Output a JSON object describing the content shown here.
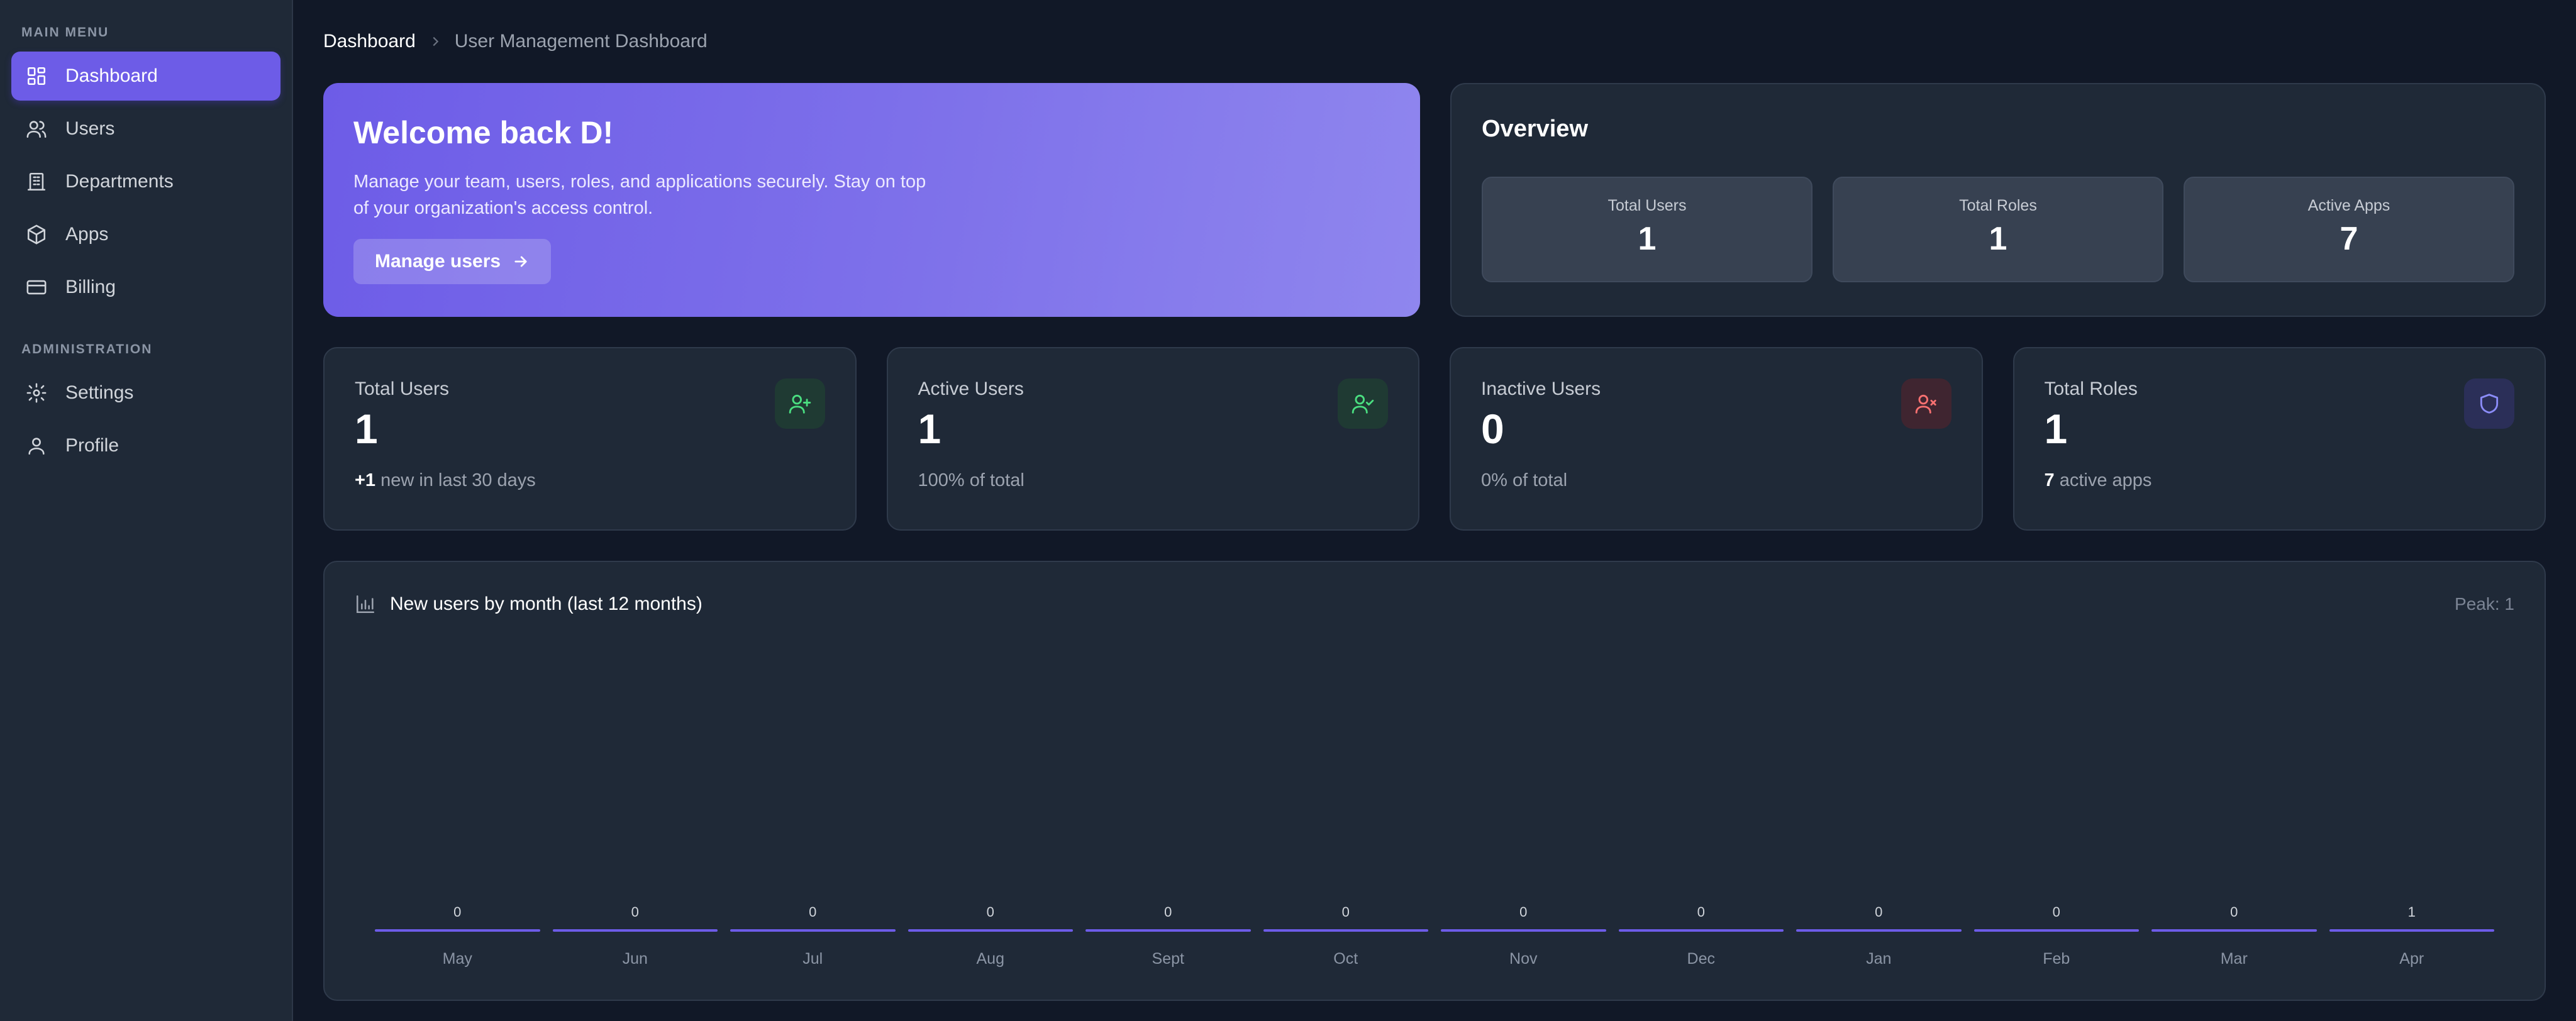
{
  "sidebar": {
    "main_menu_title": "MAIN MENU",
    "main_items": [
      {
        "label": "Dashboard",
        "icon": "grid-icon",
        "active": true
      },
      {
        "label": "Users",
        "icon": "users-icon"
      },
      {
        "label": "Departments",
        "icon": "building-icon"
      },
      {
        "label": "Apps",
        "icon": "box-icon"
      },
      {
        "label": "Billing",
        "icon": "card-icon"
      }
    ],
    "admin_title": "ADMINISTRATION",
    "admin_items": [
      {
        "label": "Settings",
        "icon": "gear-icon"
      },
      {
        "label": "Profile",
        "icon": "user-icon"
      }
    ]
  },
  "breadcrumb": {
    "root": "Dashboard",
    "current": "User Management Dashboard"
  },
  "welcome": {
    "title": "Welcome back D!",
    "text": "Manage your team, users, roles, and applications securely. Stay on top of your organization's access control.",
    "button": "Manage users"
  },
  "overview": {
    "title": "Overview",
    "cards": [
      {
        "label": "Total Users",
        "value": "1"
      },
      {
        "label": "Total Roles",
        "value": "1"
      },
      {
        "label": "Active Apps",
        "value": "7"
      }
    ]
  },
  "stats": [
    {
      "label": "Total Users",
      "value": "1",
      "sub_strong": "+1",
      "sub": " new in last 30 days",
      "icon": "user-plus-icon"
    },
    {
      "label": "Active Users",
      "value": "1",
      "sub_strong": "",
      "sub": "100% of total",
      "icon": "user-check-icon"
    },
    {
      "label": "Inactive Users",
      "value": "0",
      "sub_strong": "",
      "sub": "0% of total",
      "icon": "user-x-icon"
    },
    {
      "label": "Total Roles",
      "value": "1",
      "sub_strong": "7",
      "sub": " active apps",
      "icon": "shield-icon"
    }
  ],
  "colors": {
    "accent": "#6d5ce7",
    "green": "#4ade80",
    "red": "#f87171",
    "blue": "#8b8cf8"
  },
  "chart_data": {
    "type": "bar",
    "title": "New users by month (last 12 months)",
    "peak_label": "Peak: 1",
    "categories": [
      "May",
      "Jun",
      "Jul",
      "Aug",
      "Sept",
      "Oct",
      "Nov",
      "Dec",
      "Jan",
      "Feb",
      "Mar",
      "Apr"
    ],
    "values": [
      0,
      0,
      0,
      0,
      0,
      0,
      0,
      0,
      0,
      0,
      0,
      1
    ],
    "ylim": [
      0,
      1
    ],
    "grid": false
  }
}
